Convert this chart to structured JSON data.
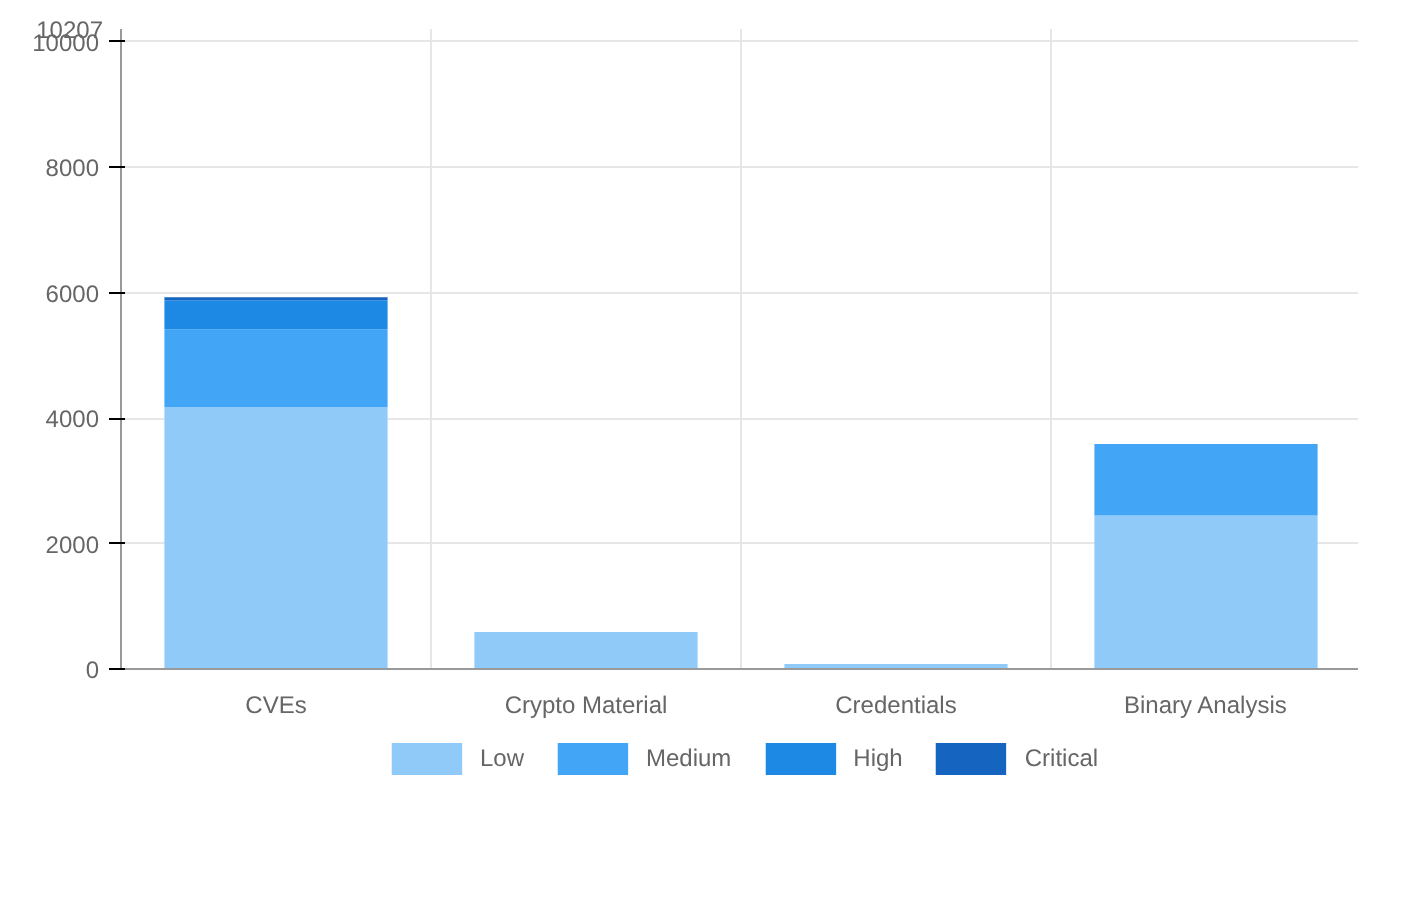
{
  "chart_data": {
    "type": "bar",
    "stacked": true,
    "categories": [
      "CVEs",
      "Crypto Material",
      "Credentials",
      "Binary Analysis"
    ],
    "series": [
      {
        "name": "Low",
        "color": "#90caf9",
        "values": [
          4180,
          590,
          80,
          2450
        ]
      },
      {
        "name": "Medium",
        "color": "#42a5f5",
        "values": [
          1240,
          0,
          0,
          1140
        ]
      },
      {
        "name": "High",
        "color": "#1e88e5",
        "values": [
          460,
          0,
          0,
          0
        ]
      },
      {
        "name": "Critical",
        "color": "#1565c0",
        "values": [
          50,
          0,
          0,
          0
        ]
      }
    ],
    "ylim": [
      0,
      10207
    ],
    "yticks": [
      0,
      2000,
      4000,
      6000,
      8000,
      10000,
      10207
    ],
    "grid": true,
    "legend": "bottom"
  }
}
